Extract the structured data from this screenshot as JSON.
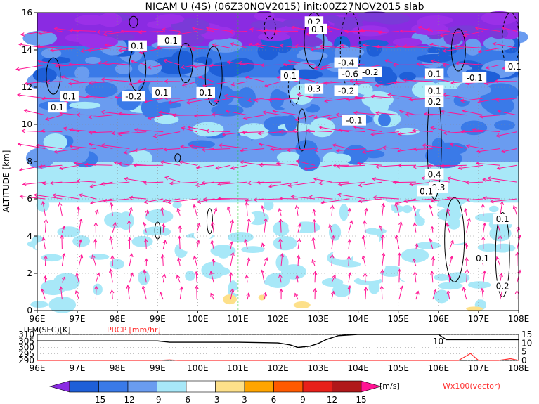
{
  "header": {
    "title": "NICAM U (4S) (06Z30NOV2015) init:00Z27NOV2015 slab"
  },
  "chart_data": [
    {
      "type": "heatmap",
      "title": "NICAM U (4S) (06Z30NOV2015) init:00Z27NOV2015 slab",
      "ylabel": "ALTITUDE [km]",
      "xlabel": "",
      "xlim": [
        96,
        108
      ],
      "ylim": [
        0,
        16
      ],
      "x_ticks": [
        "96E",
        "97E",
        "98E",
        "99E",
        "100E",
        "101E",
        "102E",
        "103E",
        "104E",
        "105E",
        "106E",
        "107E",
        "108E"
      ],
      "y_ticks": [
        "0",
        "2",
        "4",
        "6",
        "8",
        "10",
        "12",
        "14",
        "16"
      ],
      "grid": true,
      "marker_line_lon": 101,
      "contour_labels": [
        {
          "text": "0.1",
          "x": 96.5,
          "y": 10.9
        },
        {
          "text": "0.1",
          "x": 96.8,
          "y": 11.5
        },
        {
          "text": "-0.2",
          "x": 98.4,
          "y": 11.5
        },
        {
          "text": "0.1",
          "x": 99.1,
          "y": 11.7
        },
        {
          "text": "0.1",
          "x": 100.2,
          "y": 11.7
        },
        {
          "text": "0.1",
          "x": 98.5,
          "y": 14.2
        },
        {
          "text": "-0.1",
          "x": 99.3,
          "y": 14.5
        },
        {
          "text": "0.1",
          "x": 102.3,
          "y": 12.6
        },
        {
          "text": "0.3",
          "x": 102.9,
          "y": 11.9
        },
        {
          "text": "-0.1",
          "x": 103.9,
          "y": 10.2
        },
        {
          "text": "-0.4",
          "x": 103.7,
          "y": 13.3
        },
        {
          "text": "-0.6",
          "x": 103.8,
          "y": 12.7
        },
        {
          "text": "-0.2",
          "x": 104.3,
          "y": 12.8
        },
        {
          "text": "-0.2",
          "x": 103.7,
          "y": 11.8
        },
        {
          "text": "0.2",
          "x": 102.9,
          "y": 15.5
        },
        {
          "text": "0.1",
          "x": 103.0,
          "y": 15.1
        },
        {
          "text": "0.1",
          "x": 105.9,
          "y": 12.7
        },
        {
          "text": "0.1",
          "x": 105.9,
          "y": 11.8
        },
        {
          "text": "0.2",
          "x": 105.9,
          "y": 11.2
        },
        {
          "text": "-0.1",
          "x": 106.9,
          "y": 12.5
        },
        {
          "text": "0.1",
          "x": 107.9,
          "y": 13.1
        },
        {
          "text": "0.4",
          "x": 105.9,
          "y": 7.3
        },
        {
          "text": "0.3",
          "x": 106.0,
          "y": 6.6
        },
        {
          "text": "0.1",
          "x": 105.7,
          "y": 6.4
        },
        {
          "text": "0.1",
          "x": 107.6,
          "y": 4.9
        },
        {
          "text": "0.1",
          "x": 107.1,
          "y": 2.8
        },
        {
          "text": "0.2",
          "x": 107.6,
          "y": 1.3
        }
      ]
    },
    {
      "type": "line",
      "title": "",
      "series": [
        {
          "name": "TEM(SFC)[K]",
          "color": "#000000",
          "x": [
            96,
            97,
            98,
            99,
            99.3,
            100,
            101,
            102,
            102.3,
            102.5,
            102.8,
            103,
            103.2,
            103.5,
            104,
            105,
            106,
            106.2,
            107,
            108
          ],
          "values": [
            305,
            305,
            305,
            305,
            304,
            304,
            304,
            303.5,
            302,
            300,
            301,
            303,
            306,
            309,
            310,
            310,
            310,
            306,
            306,
            306
          ]
        },
        {
          "name": "PRCP [mm/hr]",
          "color": "#ff3030",
          "x": [
            96,
            99,
            99.3,
            99.5,
            100,
            101,
            102,
            106.5,
            106.8,
            107,
            107.5,
            107.8,
            108
          ],
          "values": [
            0,
            0,
            0.3,
            0,
            0,
            0,
            0,
            0,
            4,
            0,
            0,
            1,
            0
          ]
        }
      ],
      "left_axis": {
        "label": "TEM(SFC)[K]",
        "ticks": [
          "290",
          "295",
          "300",
          "305",
          "310"
        ]
      },
      "right_axis": {
        "label": "PRCP [mm/hr]",
        "ticks": [
          "0",
          "5",
          "10",
          "15"
        ]
      },
      "x_ticks": [
        "96E",
        "97E",
        "98E",
        "99E",
        "100E",
        "101E",
        "102E",
        "103E",
        "104E",
        "105E",
        "106E",
        "107E",
        "108E"
      ],
      "annotation": "10"
    }
  ],
  "colorbar": {
    "levels": [
      "-15",
      "-12",
      "-9",
      "-6",
      "-3",
      "3",
      "6",
      "9",
      "12",
      "15"
    ],
    "unit": "[m/s]",
    "colors": [
      "#8a2be2",
      "#1e5fd8",
      "#3a7ae8",
      "#6a9cf0",
      "#a8e8f8",
      "#ffffff",
      "#fde08a",
      "#ffa500",
      "#ff5a00",
      "#e8201a",
      "#b0181a",
      "#ff1493"
    ]
  },
  "vector_label": "Wx100(vector)"
}
